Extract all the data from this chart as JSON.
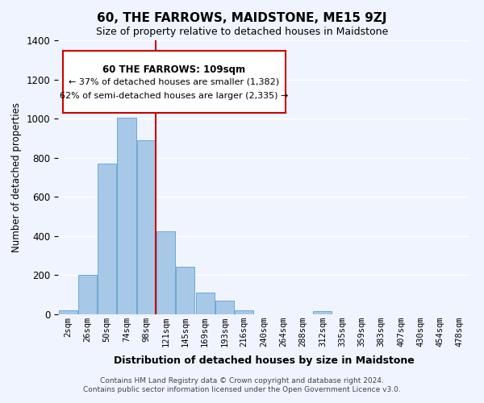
{
  "title": "60, THE FARROWS, MAIDSTONE, ME15 9ZJ",
  "subtitle": "Size of property relative to detached houses in Maidstone",
  "xlabel": "Distribution of detached houses by size in Maidstone",
  "ylabel": "Number of detached properties",
  "bar_labels": [
    "2sqm",
    "26sqm",
    "50sqm",
    "74sqm",
    "98sqm",
    "121sqm",
    "145sqm",
    "169sqm",
    "193sqm",
    "216sqm",
    "240sqm",
    "264sqm",
    "288sqm",
    "312sqm",
    "335sqm",
    "359sqm",
    "383sqm",
    "407sqm",
    "430sqm",
    "454sqm",
    "478sqm"
  ],
  "bar_values": [
    20,
    200,
    770,
    1005,
    890,
    425,
    245,
    110,
    70,
    20,
    0,
    0,
    0,
    15,
    0,
    0,
    0,
    0,
    0,
    0,
    0
  ],
  "bar_color": "#a8c8e8",
  "bar_edge_color": "#6aaad4",
  "vline_x": 4.5,
  "vline_color": "#cc0000",
  "annotation_title": "60 THE FARROWS: 109sqm",
  "annotation_line1": "← 37% of detached houses are smaller (1,382)",
  "annotation_line2": "62% of semi-detached houses are larger (2,335) →",
  "annotation_box_color": "#ffffff",
  "annotation_border_color": "#cc0000",
  "ylim": [
    0,
    1400
  ],
  "yticks": [
    0,
    200,
    400,
    600,
    800,
    1000,
    1200,
    1400
  ],
  "footer_line1": "Contains HM Land Registry data © Crown copyright and database right 2024.",
  "footer_line2": "Contains public sector information licensed under the Open Government Licence v3.0.",
  "background_color": "#f0f4ff",
  "grid_color": "#ffffff"
}
